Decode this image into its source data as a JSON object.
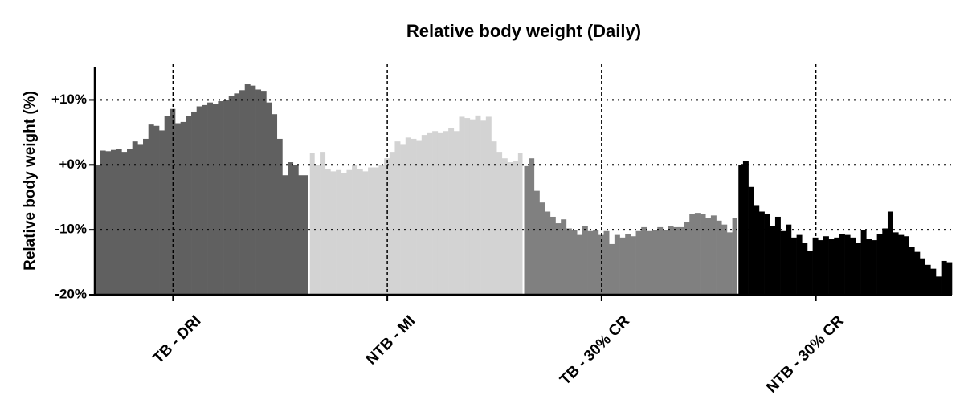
{
  "chart_data": {
    "type": "bar",
    "title": "Relative body weight (Daily)",
    "y_label": "Relative body weight (%)",
    "categories": [
      "TB - DRI",
      "NTB - MI",
      "TB - 30% CR",
      "NTB - 30% CR"
    ],
    "colors": [
      "#606060",
      "#d3d3d3",
      "#808080",
      "#000000"
    ],
    "values": [
      [
        0,
        2.2,
        2.1,
        2.3,
        2.5,
        2.0,
        2.4,
        3.6,
        3.2,
        4.0,
        6.2,
        6.0,
        5.3,
        7.5,
        8.6,
        6.4,
        6.6,
        7.5,
        8.2,
        9.0,
        9.2,
        9.6,
        9.4,
        9.8,
        10.0,
        10.6,
        11.0,
        11.5,
        12.4,
        12.2,
        11.6,
        11.4,
        9.6,
        7.8,
        4.0,
        -1.6,
        0.4,
        0.0,
        -1.6,
        -1.6
      ],
      [
        1.8,
        0,
        2.0,
        -0.6,
        -1.0,
        -0.8,
        -1.2,
        -0.8,
        0,
        -0.6,
        -1.0,
        -0.4,
        -0.4,
        0,
        1.0,
        2.0,
        3.6,
        3.2,
        4.2,
        4.0,
        3.8,
        4.6,
        5.0,
        5.2,
        5.0,
        5.2,
        5.6,
        5.2,
        7.4,
        7.2,
        7.0,
        7.6,
        6.8,
        7.4,
        3.6,
        2.0,
        1.0,
        0.4,
        0.6,
        1.8
      ],
      [
        -0.2,
        1.0,
        -4.0,
        -5.8,
        -7.2,
        -8.0,
        -9.0,
        -8.4,
        -9.8,
        -10.0,
        -10.8,
        -9.4,
        -10.2,
        -10.0,
        -10.8,
        -10.2,
        -12.2,
        -10.8,
        -11.2,
        -10.6,
        -11.0,
        -10.2,
        -9.6,
        -10.2,
        -10.0,
        -9.6,
        -10.0,
        -9.4,
        -9.6,
        -9.6,
        -8.8,
        -7.6,
        -7.4,
        -7.6,
        -8.2,
        -7.8,
        -8.6,
        -9.2,
        -10.4,
        -8.2
      ],
      [
        0,
        0.6,
        -3.4,
        -6.2,
        -7.2,
        -7.6,
        -9.4,
        -8.0,
        -10.2,
        -9.2,
        -11.2,
        -10.8,
        -12.0,
        -13.2,
        -11.2,
        -11.6,
        -11.0,
        -11.4,
        -11.2,
        -10.6,
        -10.8,
        -11.2,
        -12.0,
        -10.0,
        -11.4,
        -11.6,
        -10.6,
        -9.8,
        -7.2,
        -10.4,
        -10.8,
        -11.0,
        -12.6,
        -13.4,
        -14.4,
        -15.4,
        -16.0,
        -17.2,
        -14.8,
        -15.0
      ]
    ],
    "ylim": [
      -20,
      15
    ],
    "yticks": [
      {
        "value": -20,
        "label": "-20%"
      },
      {
        "value": -10,
        "label": "-10%"
      },
      {
        "value": 0,
        "label": "+0%"
      },
      {
        "value": 10,
        "label": "+10%"
      }
    ],
    "grid": true
  }
}
